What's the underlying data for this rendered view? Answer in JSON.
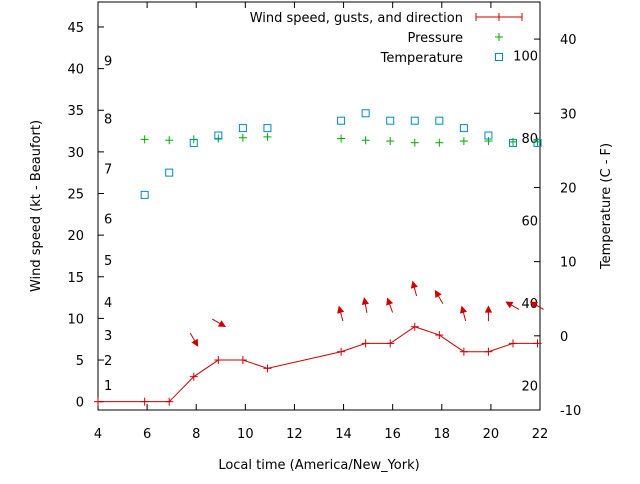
{
  "chart_data": {
    "type": "line",
    "xlabel": "Local time (America/New_York)",
    "ylabel_left": "Wind speed (kt - Beaufort)",
    "ylabel_right": "Temperature (C - F)",
    "xlim": [
      4,
      22
    ],
    "x_ticks": [
      4,
      6,
      8,
      10,
      12,
      14,
      16,
      18,
      20,
      22
    ],
    "wind_ylim": [
      -1,
      48
    ],
    "wind_ticks": [
      0,
      5,
      10,
      15,
      20,
      25,
      30,
      35,
      40,
      45
    ],
    "temp_c_lim": [
      -10,
      45
    ],
    "temp_c_ticks": [
      -10,
      0,
      10,
      20,
      30,
      40
    ],
    "fahrenheit_labels": [
      {
        "f": 20,
        "label": "20"
      },
      {
        "f": 40,
        "label": "40"
      },
      {
        "f": 60,
        "label": "60"
      },
      {
        "f": 80,
        "label": "80"
      },
      {
        "f": 100,
        "label": "100"
      }
    ],
    "beaufort_labels": [
      {
        "kt": 2,
        "label": "1"
      },
      {
        "kt": 5,
        "label": "2"
      },
      {
        "kt": 8,
        "label": "3"
      },
      {
        "kt": 12,
        "label": "4"
      },
      {
        "kt": 17,
        "label": "5"
      },
      {
        "kt": 22,
        "label": "6"
      },
      {
        "kt": 28,
        "label": "7"
      },
      {
        "kt": 34,
        "label": "8"
      },
      {
        "kt": 41,
        "label": "9"
      }
    ],
    "legend_position": "top-right",
    "series": [
      {
        "name": "Wind speed, gusts, and direction",
        "color": "#cc0000",
        "style": "line-with-plus-markers",
        "x": [
          4,
          5.9,
          6.9,
          7.9,
          8.9,
          9.9,
          10.9,
          13.9,
          14.9,
          15.9,
          16.9,
          17.9,
          18.9,
          19.9,
          20.9,
          21.9
        ],
        "y": [
          0,
          0,
          0,
          3,
          5,
          5,
          4,
          6,
          7,
          7,
          9,
          8,
          6,
          6,
          7,
          7
        ]
      },
      {
        "name": "Pressure",
        "color": "#00aa00",
        "style": "plus-markers",
        "x": [
          5.9,
          6.9,
          7.9,
          8.9,
          9.9,
          10.9,
          13.9,
          14.9,
          15.9,
          16.9,
          17.9,
          18.9,
          19.9,
          20.9,
          21.9
        ],
        "y": [
          31.5,
          31.4,
          31.5,
          31.6,
          31.7,
          31.8,
          31.6,
          31.4,
          31.3,
          31.1,
          31.1,
          31.3,
          31.3,
          31.2,
          31.2
        ]
      },
      {
        "name": "Temperature",
        "color": "#0088cc",
        "style": "square-markers",
        "axis": "right",
        "x": [
          5.9,
          6.9,
          7.9,
          8.9,
          9.9,
          10.9,
          13.9,
          14.9,
          15.9,
          16.9,
          17.9,
          18.9,
          19.9,
          20.9,
          21.9
        ],
        "y": [
          19,
          22,
          26,
          27,
          28,
          28,
          29,
          30,
          29,
          29,
          29,
          28,
          27,
          26,
          26
        ]
      }
    ],
    "wind_direction_arrows": [
      {
        "x": 7.9,
        "toward_deg": 150
      },
      {
        "x": 8.9,
        "toward_deg": 120
      },
      {
        "x": 13.9,
        "toward_deg": -15
      },
      {
        "x": 14.9,
        "toward_deg": -10
      },
      {
        "x": 15.9,
        "toward_deg": -20
      },
      {
        "x": 16.9,
        "toward_deg": -15
      },
      {
        "x": 17.9,
        "toward_deg": -30
      },
      {
        "x": 18.9,
        "toward_deg": -15
      },
      {
        "x": 19.9,
        "toward_deg": 0
      },
      {
        "x": 20.9,
        "toward_deg": -60
      },
      {
        "x": 21.9,
        "toward_deg": -60
      }
    ]
  }
}
